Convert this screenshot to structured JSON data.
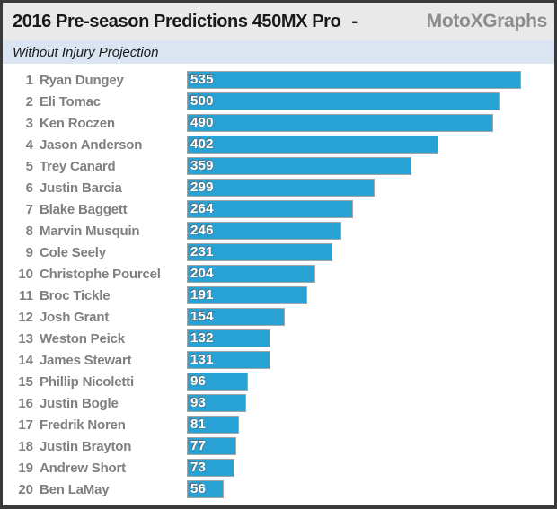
{
  "header": {
    "title": "2016 Pre-season Predictions 450MX Pro",
    "separator": "-",
    "brand": "MotoXGraphs"
  },
  "subtitle": "Without Injury Projection",
  "colors": {
    "bar_fill": "#28a2d5",
    "bar_border": "#a6a6a6",
    "bar_label_text": "#ffffff",
    "title_text": "#1a1a1a",
    "brand_text": "#8c8c8c",
    "rider_text": "#7f7f7f",
    "header_band_bg": "#e9e9e9",
    "subtitle_band_bg": "#dbe5f1",
    "frame_border": "#3a3a3a",
    "chart_bg": "#ffffff"
  },
  "chart_data": {
    "type": "bar",
    "orientation": "horizontal",
    "title": "2016 Pre-season Predictions 450MX Pro - MotoXGraphs",
    "subtitle": "Without Injury Projection",
    "value_axis_max": 600,
    "scale_max": 591,
    "grid": false,
    "legend": false,
    "data_labels": "inside-base, white bold",
    "categories": [
      "Ryan Dungey",
      "Eli Tomac",
      "Ken Roczen",
      "Jason Anderson",
      "Trey Canard",
      "Justin Barcia",
      "Blake Baggett",
      "Marvin Musquin",
      "Cole Seely",
      "Christophe Pourcel",
      "Broc Tickle",
      "Josh Grant",
      "Weston Peick",
      "James Stewart",
      "Phillip Nicoletti",
      "Justin Bogle",
      "Fredrik Noren",
      "Justin Brayton",
      "Andrew Short",
      "Ben LaMay"
    ],
    "values": [
      535,
      500,
      490,
      402,
      359,
      299,
      264,
      246,
      231,
      204,
      191,
      154,
      132,
      131,
      96,
      93,
      81,
      77,
      73,
      56
    ],
    "riders": [
      {
        "rank": "1",
        "name": "Ryan Dungey",
        "value": "535"
      },
      {
        "rank": "2",
        "name": "Eli Tomac",
        "value": "500"
      },
      {
        "rank": "3",
        "name": "Ken Roczen",
        "value": "490"
      },
      {
        "rank": "4",
        "name": "Jason Anderson",
        "value": "402"
      },
      {
        "rank": "5",
        "name": "Trey Canard",
        "value": "359"
      },
      {
        "rank": "6",
        "name": "Justin Barcia",
        "value": "299"
      },
      {
        "rank": "7",
        "name": "Blake Baggett",
        "value": "264"
      },
      {
        "rank": "8",
        "name": "Marvin Musquin",
        "value": "246"
      },
      {
        "rank": "9",
        "name": "Cole Seely",
        "value": "231"
      },
      {
        "rank": "10",
        "name": "Christophe Pourcel",
        "value": "204"
      },
      {
        "rank": "11",
        "name": "Broc Tickle",
        "value": "191"
      },
      {
        "rank": "12",
        "name": "Josh Grant",
        "value": "154"
      },
      {
        "rank": "13",
        "name": "Weston Peick",
        "value": "132"
      },
      {
        "rank": "14",
        "name": "James Stewart",
        "value": "131"
      },
      {
        "rank": "15",
        "name": "Phillip Nicoletti",
        "value": "96"
      },
      {
        "rank": "16",
        "name": "Justin Bogle",
        "value": "93"
      },
      {
        "rank": "17",
        "name": "Fredrik Noren",
        "value": "81"
      },
      {
        "rank": "18",
        "name": "Justin Brayton",
        "value": "77"
      },
      {
        "rank": "19",
        "name": "Andrew Short",
        "value": "73"
      },
      {
        "rank": "20",
        "name": "Ben LaMay",
        "value": "56"
      }
    ]
  }
}
